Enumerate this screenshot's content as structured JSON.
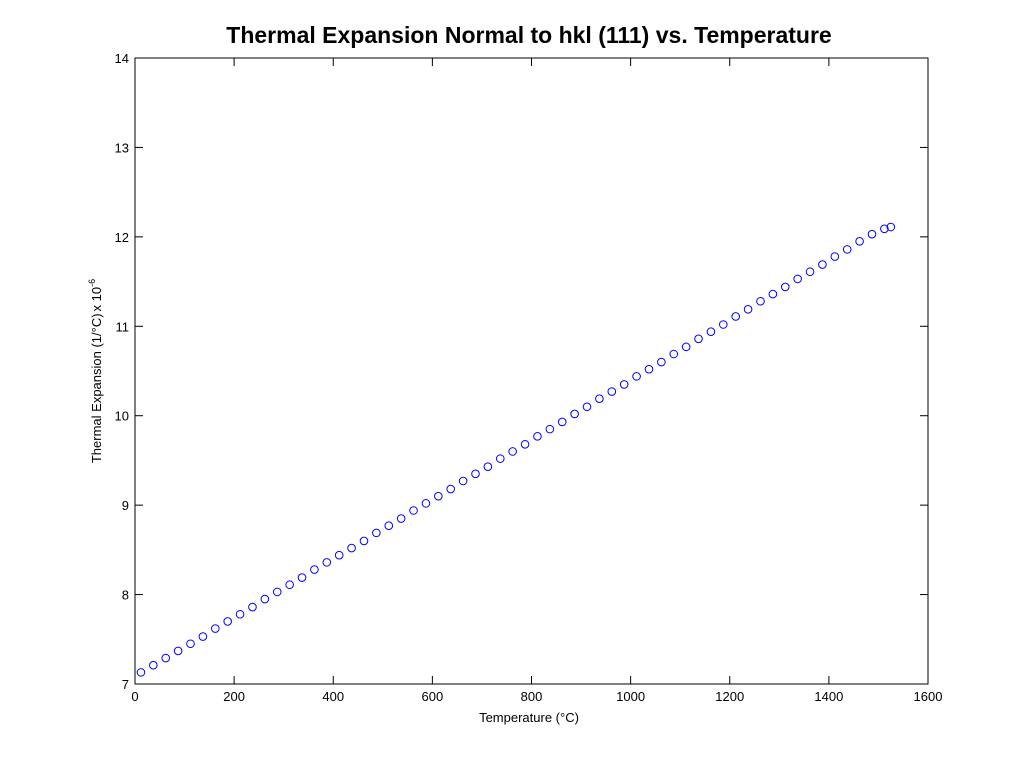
{
  "chart_data": {
    "type": "scatter",
    "title": "Thermal Expansion Normal to hkl (111) vs. Temperature",
    "xlabel": "Temperature (°C)",
    "ylabel_main": "Thermal Expansion (1/°C)",
    "ylabel_times": "x 10",
    "ylabel_exponent": "-6",
    "xlim": [
      0,
      1600
    ],
    "ylim": [
      7,
      14
    ],
    "xticks": [
      0,
      200,
      400,
      600,
      800,
      1000,
      1200,
      1400,
      1600
    ],
    "yticks": [
      7,
      8,
      9,
      10,
      11,
      12,
      13,
      14
    ],
    "xtick_labels": [
      "0",
      "200",
      "400",
      "600",
      "800",
      "1000",
      "1200",
      "1400",
      "1600"
    ],
    "ytick_labels": [
      "7",
      "8",
      "9",
      "10",
      "11",
      "12",
      "13",
      "14"
    ],
    "grid": false,
    "legend": "none",
    "series": [
      {
        "marker": "circle-open",
        "color": "#0000ff",
        "x": [
          12,
          37,
          62,
          87,
          112,
          137,
          162,
          187,
          212,
          237,
          262,
          287,
          312,
          337,
          362,
          387,
          412,
          437,
          462,
          487,
          512,
          537,
          562,
          587,
          612,
          637,
          662,
          687,
          712,
          737,
          762,
          787,
          812,
          837,
          862,
          887,
          912,
          937,
          962,
          987,
          1012,
          1037,
          1062,
          1087,
          1112,
          1137,
          1162,
          1187,
          1212,
          1237,
          1262,
          1287,
          1312,
          1337,
          1362,
          1387,
          1412,
          1437,
          1462,
          1487,
          1512,
          1525
        ],
        "y": [
          7.13,
          7.21,
          7.29,
          7.37,
          7.45,
          7.53,
          7.62,
          7.7,
          7.78,
          7.86,
          7.95,
          8.03,
          8.11,
          8.19,
          8.28,
          8.36,
          8.44,
          8.52,
          8.6,
          8.69,
          8.77,
          8.85,
          8.94,
          9.02,
          9.1,
          9.18,
          9.27,
          9.35,
          9.43,
          9.52,
          9.6,
          9.68,
          9.77,
          9.85,
          9.93,
          10.02,
          10.1,
          10.19,
          10.27,
          10.35,
          10.44,
          10.52,
          10.6,
          10.69,
          10.77,
          10.86,
          10.94,
          11.02,
          11.11,
          11.19,
          11.28,
          11.36,
          11.44,
          11.53,
          11.61,
          11.69,
          11.78,
          11.86,
          11.95,
          12.03,
          12.09,
          12.11
        ]
      }
    ]
  }
}
